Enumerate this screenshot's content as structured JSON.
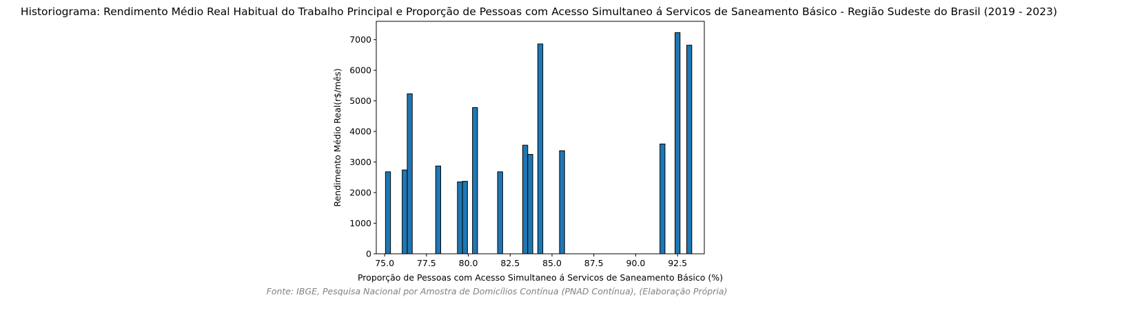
{
  "chart_data": {
    "type": "bar",
    "title": "Historiograma: Rendimento Médio Real Habitual do Trabalho Principal e Proporção de Pessoas com Acesso Simultaneo á Servicos de Saneamento Básico - Região Sudeste do Brasil (2019 - 2023)",
    "xlabel": "Proporção de Pessoas com Acesso Simultaneo á Servicos de Saneamento Básico (%)",
    "ylabel": "Rendimento Médio Real(r$/mês)",
    "caption": "Fonte: IBGE, Pesquisa Nacional por Amostra de Domicílios Contínua (PNAD Contínua), (Elaboração Própria)",
    "xlim": [
      74.5,
      94.1
    ],
    "ylim": [
      0,
      7600
    ],
    "bar_width": 0.3,
    "bar_color": "#1f77b4",
    "edge_color": "#000000",
    "caption_color": "#808080",
    "grid": false,
    "x_ticks": [
      "75.0",
      "77.5",
      "80.0",
      "82.5",
      "85.0",
      "87.5",
      "90.0",
      "92.5"
    ],
    "y_ticks": [
      "0",
      "1000",
      "2000",
      "3000",
      "4000",
      "5000",
      "6000",
      "7000"
    ],
    "x": [
      75.2,
      76.2,
      76.5,
      78.2,
      79.5,
      79.8,
      80.4,
      81.9,
      83.4,
      83.7,
      84.3,
      85.6,
      91.6,
      92.5,
      93.2
    ],
    "values": [
      2680,
      2740,
      5230,
      2870,
      2350,
      2370,
      4780,
      2680,
      3550,
      3250,
      6860,
      3370,
      3590,
      7230,
      6820
    ]
  }
}
